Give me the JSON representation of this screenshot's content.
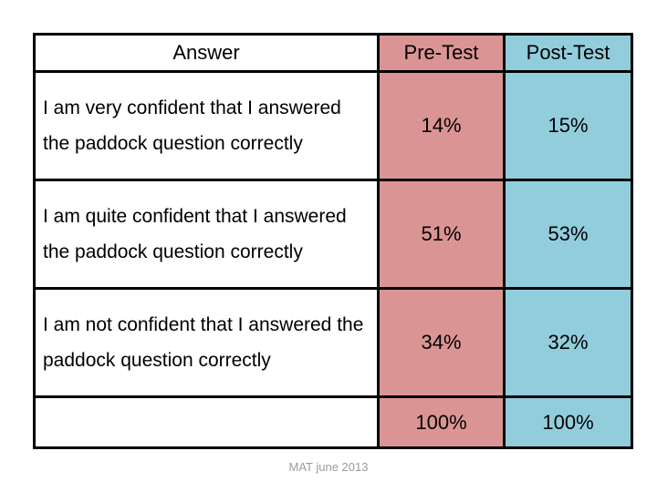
{
  "table": {
    "columns": [
      "Answer",
      "Pre-Test",
      "Post-Test"
    ],
    "rows": [
      {
        "answer": "I am very confident that I answered the paddock question correctly",
        "pre": "14%",
        "post": "15%"
      },
      {
        "answer": "I am quite confident that I answered the paddock question correctly",
        "pre": "51%",
        "post": "53%"
      },
      {
        "answer": "I am not confident that I answered the paddock question correctly",
        "pre": "34%",
        "post": "32%"
      },
      {
        "answer": "",
        "pre": "100%",
        "post": "100%"
      }
    ],
    "colors": {
      "pre_test_bg": "#DB9494",
      "post_test_bg": "#92CDDC",
      "border": "#000000"
    }
  },
  "footer": {
    "caption": "MAT june 2013",
    "color": "#9B9B9B"
  }
}
